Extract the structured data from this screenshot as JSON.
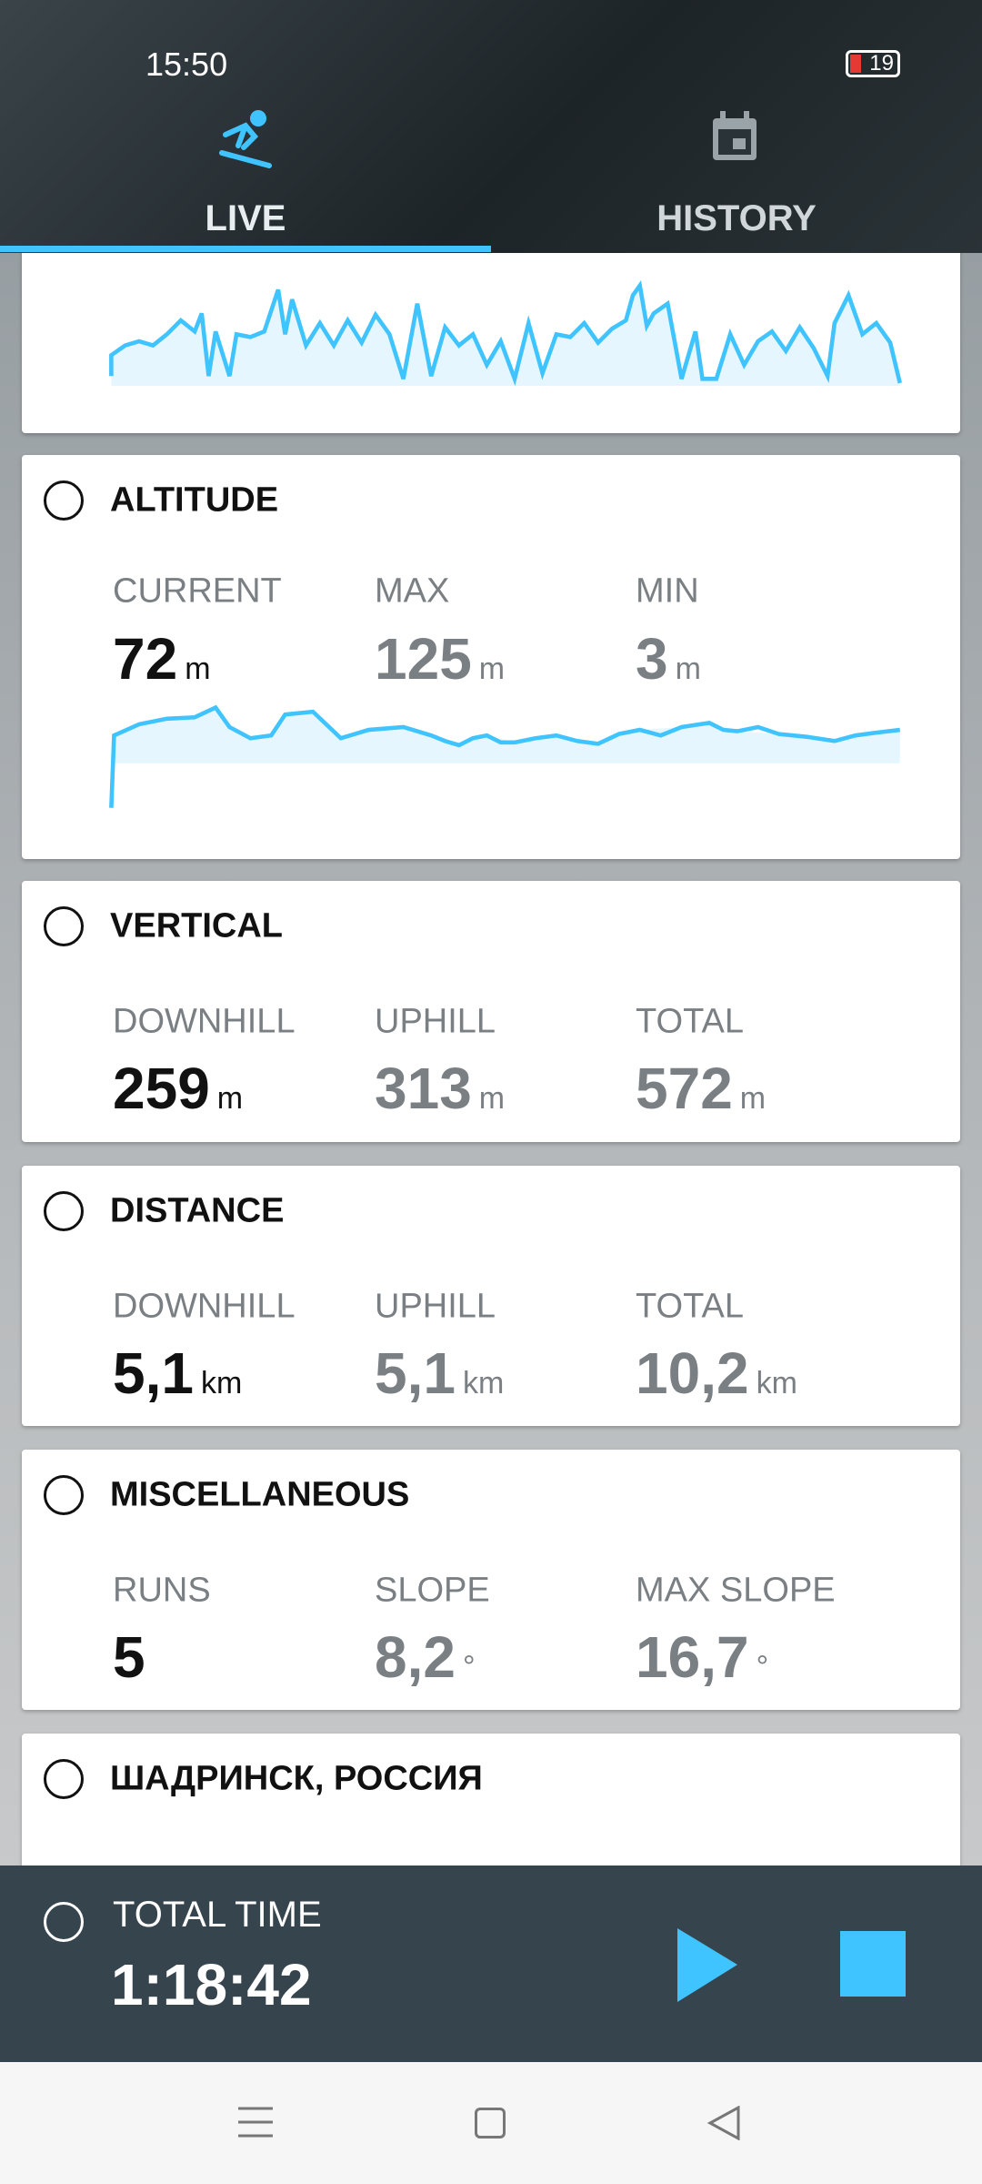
{
  "status_bar": {
    "time": "15:50",
    "battery": "19"
  },
  "tabs": [
    {
      "label": "LIVE"
    },
    {
      "label": "HISTORY"
    }
  ],
  "cards": [
    {
      "title": "ALTITUDE",
      "stats": [
        {
          "label": "CURRENT",
          "value": "72",
          "unit": "m"
        },
        {
          "label": "MAX",
          "value": "125",
          "unit": "m"
        },
        {
          "label": "MIN",
          "value": "3",
          "unit": "m"
        }
      ]
    },
    {
      "title": "VERTICAL",
      "stats": [
        {
          "label": "DOWNHILL",
          "value": "259",
          "unit": "m"
        },
        {
          "label": "UPHILL",
          "value": "313",
          "unit": "m"
        },
        {
          "label": "TOTAL",
          "value": "572",
          "unit": "m"
        }
      ]
    },
    {
      "title": "DISTANCE",
      "stats": [
        {
          "label": "DOWNHILL",
          "value": "5,1",
          "unit": "km"
        },
        {
          "label": "UPHILL",
          "value": "5,1",
          "unit": "km"
        },
        {
          "label": "TOTAL",
          "value": "10,2",
          "unit": "km"
        }
      ]
    },
    {
      "title": "MISCELLANEOUS",
      "stats": [
        {
          "label": "RUNS",
          "value": "5",
          "unit": ""
        },
        {
          "label": "SLOPE",
          "value": "8,2",
          "unit": "°"
        },
        {
          "label": "MAX SLOPE",
          "value": "16,7",
          "unit": "°"
        }
      ]
    },
    {
      "title": "ШАДРИНСК, РОССИЯ"
    }
  ],
  "timer": {
    "label": "TOTAL TIME",
    "value": "1:18:42"
  }
}
